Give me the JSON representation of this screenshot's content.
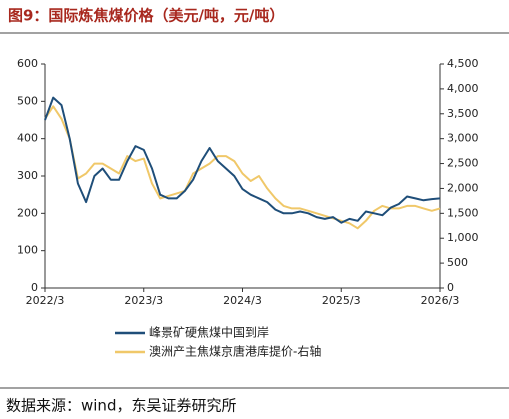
{
  "chart_data": {
    "type": "line",
    "title": "图9：国际炼焦煤价格（美元/吨，元/吨）",
    "source": "数据来源：wind，东吴证券研究所",
    "categories": [
      "2022/3",
      null,
      null,
      null,
      null,
      null,
      null,
      null,
      null,
      null,
      null,
      null,
      "2023/3",
      null,
      null,
      null,
      null,
      null,
      null,
      null,
      null,
      null,
      null,
      null,
      "2024/3",
      null,
      null,
      null,
      null,
      null,
      null,
      null,
      null,
      null,
      null,
      null,
      "2025/3",
      null,
      null,
      null,
      null,
      null,
      null,
      null,
      null,
      null,
      null,
      null,
      "2026/3"
    ],
    "series": [
      {
        "name": "峰景矿硬焦煤中国到岸",
        "color": "#1f4e79",
        "values": [
          450,
          510,
          490,
          400,
          280,
          230,
          300,
          320,
          290,
          290,
          340,
          380,
          370,
          320,
          250,
          240,
          240,
          260,
          290,
          340,
          375,
          340,
          320,
          300,
          265,
          250,
          240,
          230,
          210,
          200,
          200,
          205,
          200,
          190,
          185,
          190,
          175,
          185,
          180,
          205,
          200,
          195,
          215,
          225,
          245,
          240,
          235,
          238,
          240
        ]
      },
      {
        "name": "澳洲产主焦煤京唐港库提价-右轴",
        "color": "#f0c869",
        "axis": "y2",
        "values": [
          3400,
          3650,
          3400,
          3000,
          2200,
          2300,
          2500,
          2500,
          2400,
          2300,
          2650,
          2550,
          2600,
          2100,
          1800,
          1850,
          1900,
          1950,
          2300,
          2400,
          2500,
          2650,
          2650,
          2550,
          2300,
          2150,
          2250,
          2000,
          1800,
          1650,
          1600,
          1600,
          1550,
          1500,
          1450,
          1400,
          1350,
          1300,
          1200,
          1350,
          1550,
          1650,
          1600,
          1600,
          1650,
          1650,
          1600,
          1550,
          1600
        ]
      }
    ],
    "ylim": [
      0,
      600
    ],
    "yticks": [
      0,
      100,
      200,
      300,
      400,
      500,
      600
    ],
    "y2lim": [
      0,
      4500
    ],
    "y2ticks": [
      0,
      500,
      {
        "value": 1000,
        "label": "1,000"
      },
      {
        "value": 1500,
        "label": "1,500"
      },
      {
        "value": 2000,
        "label": "2,000"
      },
      {
        "value": 2500,
        "label": "2,500"
      },
      {
        "value": 3000,
        "label": "3,000"
      },
      {
        "value": 3500,
        "label": "3,500"
      },
      {
        "value": 4000,
        "label": "4,000"
      },
      {
        "value": 4500,
        "label": "4,500"
      }
    ],
    "grid": false,
    "legend": "bottom"
  }
}
